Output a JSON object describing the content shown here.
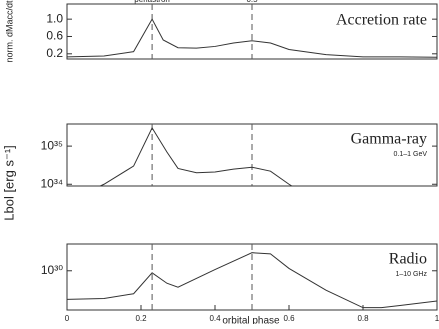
{
  "chart_data": [
    {
      "type": "line",
      "title": "Accretion rate",
      "ylabel": "norm. dMacc/dt",
      "color": "#333333",
      "x": [
        0,
        0.1,
        0.18,
        0.23,
        0.26,
        0.3,
        0.35,
        0.4,
        0.45,
        0.5,
        0.55,
        0.6,
        0.7,
        0.8,
        0.9,
        1
      ],
      "values": [
        0.13,
        0.15,
        0.25,
        1.0,
        0.52,
        0.34,
        0.33,
        0.37,
        0.45,
        0.5,
        0.45,
        0.3,
        0.18,
        0.13,
        0.13,
        0.12
      ],
      "xlim": [
        0,
        1
      ],
      "ylim": [
        0.08,
        1.35
      ],
      "yticks": [
        {
          "value": 1,
          "label": "1.0"
        },
        0.6,
        0.2
      ],
      "vlines": [
        {
          "value": 0.23,
          "label": "periastron"
        },
        0.5
      ]
    },
    {
      "type": "line",
      "title": "Gamma-ray",
      "subtitle": "0.1–1 GeV",
      "ylabel": "Lbol [erg s⁻¹]",
      "color": "#333333",
      "log": true,
      "x": [
        0.05,
        0.1,
        0.18,
        0.23,
        0.27,
        0.3,
        0.35,
        0.4,
        0.45,
        0.5,
        0.55,
        0.6,
        0.65
      ],
      "values": [
        6e+33,
        1e+34,
        3e+34,
        3e+35,
        7e+34,
        2.6e+34,
        2e+34,
        2.1e+34,
        2.5e+34,
        2.8e+34,
        2.2e+34,
        1e+34,
        5e+33
      ],
      "xlim": [
        0,
        1
      ],
      "ylim": [
        9e+33,
        3.8e+35
      ],
      "yticks": [
        {
          "value": 1e+35,
          "label": "10³⁵"
        },
        {
          "value": 1e+34,
          "label": "10³⁴"
        }
      ],
      "vlines": [
        0.23,
        0.5
      ]
    },
    {
      "type": "line",
      "title": "Radio",
      "subtitle": "1–10 GHz",
      "xlabel": "orbital phase",
      "color": "#333333",
      "log": true,
      "x": [
        0,
        0.1,
        0.18,
        0.23,
        0.27,
        0.3,
        0.4,
        0.5,
        0.55,
        0.6,
        0.7,
        0.8,
        0.85,
        0.9,
        1
      ],
      "values": [
        3.1e+29,
        3.2e+29,
        3.9e+29,
        9.2e+29,
        6e+29,
        5.1e+29,
        1.05e+30,
        2.1e+30,
        2e+30,
        1.1e+30,
        4.5e+29,
        2.2e+29,
        2.2e+29,
        2.4e+29,
        2.9e+29
      ],
      "xlim": [
        0,
        1
      ],
      "ylim": [
        2e+29,
        3e+30
      ],
      "yticks": [
        {
          "value": 1e+30,
          "label": "10³⁰"
        }
      ],
      "xticks": [
        0,
        0.2,
        0.4,
        0.6,
        0.8,
        1
      ],
      "vlines": [
        0.23,
        0.5
      ]
    }
  ]
}
